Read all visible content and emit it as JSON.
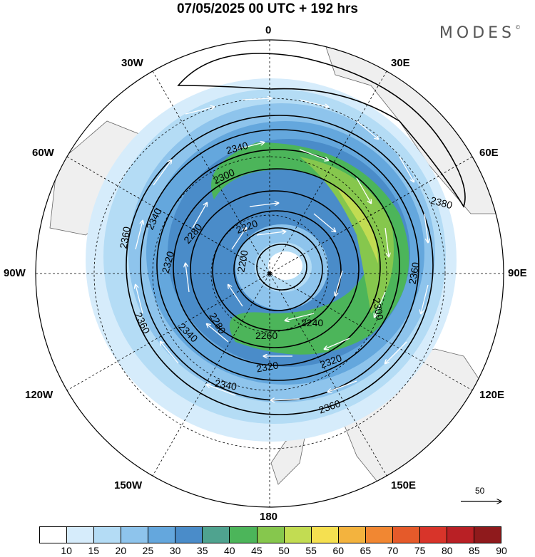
{
  "title": "07/05/2025  00 UTC  + 192 hrs",
  "brand": "MODES",
  "brand_mark": "©",
  "longitude_labels": {
    "north": "0",
    "e30": "30E",
    "e60": "60E",
    "e90": "90E",
    "e120": "120E",
    "e150": "150E",
    "south": "180",
    "w150": "150W",
    "w120": "120W",
    "w90": "90W",
    "w60": "60W",
    "w30": "30W"
  },
  "contour_labels": [
    "2200",
    "2220",
    "2240",
    "2260",
    "2280",
    "2300",
    "2320",
    "2340",
    "2360",
    "2380"
  ],
  "colorbar": {
    "ticks": [
      "10",
      "15",
      "20",
      "25",
      "30",
      "35",
      "40",
      "45",
      "50",
      "55",
      "60",
      "65",
      "70",
      "75",
      "80",
      "85",
      "90"
    ],
    "colors": [
      "#ffffff",
      "#d6ecfb",
      "#b4dcf5",
      "#8ec4ec",
      "#64a7dd",
      "#4a8cc9",
      "#4fa38f",
      "#4cb55a",
      "#86c74d",
      "#c2dc52",
      "#f5e050",
      "#f3b33e",
      "#f18732",
      "#e55a2a",
      "#d8342a",
      "#b92025",
      "#8f1a1c"
    ]
  },
  "reference_vector": "50",
  "icons": [
    "south-pole-stereographic-map",
    "wind-arrow-icon"
  ]
}
